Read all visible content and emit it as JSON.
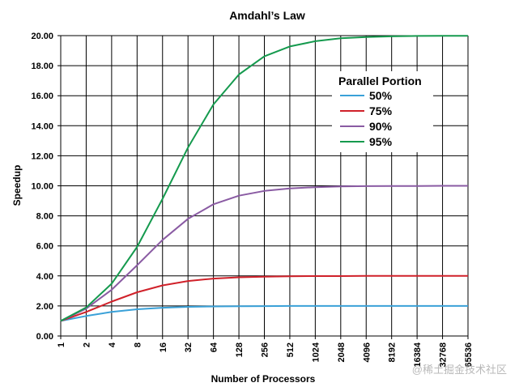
{
  "chart_data": {
    "type": "line",
    "title": "Amdahl’s Law",
    "xlabel": "Number of Processors",
    "ylabel": "Speedup",
    "x_scale": "log2",
    "categories": [
      "1",
      "2",
      "4",
      "8",
      "16",
      "32",
      "64",
      "128",
      "256",
      "512",
      "1024",
      "2048",
      "4096",
      "8192",
      "16384",
      "32768",
      "65536"
    ],
    "yticks": [
      "0.00",
      "2.00",
      "4.00",
      "6.00",
      "8.00",
      "10.00",
      "12.00",
      "14.00",
      "16.00",
      "18.00",
      "20.00"
    ],
    "ylim": [
      0,
      20
    ],
    "grid": true,
    "legend": {
      "title": "Parallel Portion",
      "placement": "top-right"
    },
    "series": [
      {
        "name": "50%",
        "color": "#3aa1d8",
        "values": [
          1.0,
          1.33,
          1.6,
          1.78,
          1.88,
          1.94,
          1.97,
          1.98,
          1.99,
          2.0,
          2.0,
          2.0,
          2.0,
          2.0,
          2.0,
          2.0,
          2.0
        ]
      },
      {
        "name": "75%",
        "color": "#d0212a",
        "values": [
          1.0,
          1.6,
          2.29,
          2.91,
          3.37,
          3.66,
          3.82,
          3.91,
          3.95,
          3.98,
          3.99,
          3.99,
          4.0,
          4.0,
          4.0,
          4.0,
          4.0
        ]
      },
      {
        "name": "90%",
        "color": "#8a5ba3",
        "values": [
          1.0,
          1.82,
          3.08,
          4.71,
          6.4,
          7.8,
          8.77,
          9.34,
          9.66,
          9.83,
          9.91,
          9.96,
          9.98,
          9.99,
          9.99,
          10.0,
          10.0
        ]
      },
      {
        "name": "95%",
        "color": "#159a4e",
        "values": [
          1.0,
          1.9,
          3.48,
          5.93,
          9.14,
          12.55,
          15.42,
          17.41,
          18.62,
          19.28,
          19.63,
          19.82,
          19.91,
          19.95,
          19.98,
          19.99,
          19.99
        ]
      }
    ]
  },
  "watermark": "@稀土掘金技术社区"
}
